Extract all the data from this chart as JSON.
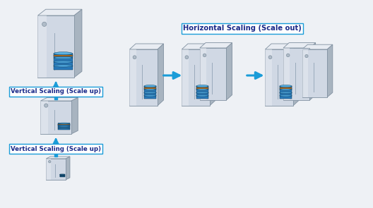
{
  "bg_color": "#eef1f5",
  "arrow_color": "#1a9cd8",
  "box_border_color": "#1a9cd8",
  "box_text_color": "#1a2a8a",
  "label1": "Vertical Scaling (Scale up)",
  "label2": "Vertical Scaling (Scale up)",
  "label3": "Horizontal Scaling (Scale out)",
  "body_face": "#d0d8e4",
  "body_top": "#e8ecf2",
  "body_right": "#a8b4c0",
  "body_edge": "#8090a0",
  "screw_color": "#b0bcc8",
  "slot_color": "#9aaabb",
  "disk_dark": "#1a5a8a",
  "disk_mid": "#2878b8",
  "disk_light": "#4a9fd4",
  "disk_orange": "#c87010",
  "disk_top": "#5ab0e0",
  "disk_edge": "#0a3858"
}
